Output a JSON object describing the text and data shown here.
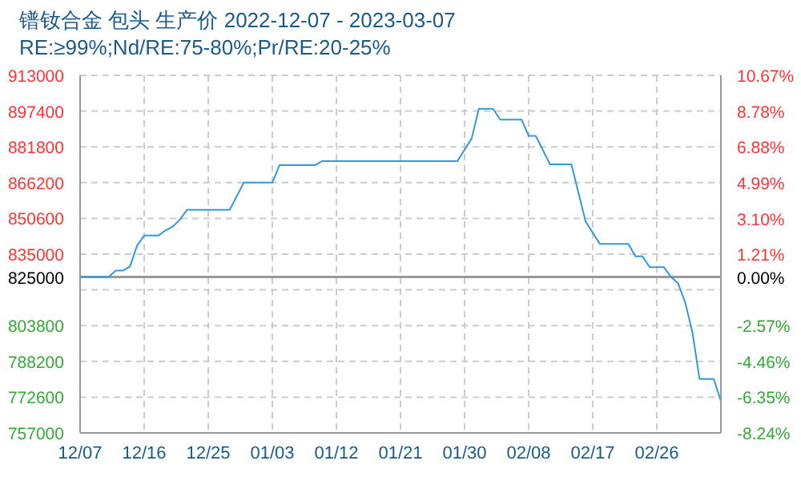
{
  "chart_data": {
    "type": "line",
    "title": "镨钕合金 包头 生产价 2022-12-07 - 2023-03-07",
    "subtitle": "RE:≥99%;Nd/RE:75-80%;Pr/RE:20-25%",
    "x": [
      "2022-12-07",
      "2022-12-11",
      "2022-12-12",
      "2022-12-13",
      "2022-12-14",
      "2022-12-15",
      "2022-12-16",
      "2022-12-18",
      "2022-12-19",
      "2022-12-20",
      "2022-12-21",
      "2022-12-22",
      "2022-12-28",
      "2022-12-30",
      "2023-01-03",
      "2023-01-04",
      "2023-01-09",
      "2023-01-10",
      "2023-01-29",
      "2023-01-31",
      "2023-02-01",
      "2023-02-03",
      "2023-02-04",
      "2023-02-07",
      "2023-02-08",
      "2023-02-09",
      "2023-02-11",
      "2023-02-14",
      "2023-02-16",
      "2023-02-18",
      "2023-02-22",
      "2023-02-23",
      "2023-02-24",
      "2023-02-25",
      "2023-02-27",
      "2023-02-28",
      "2023-03-01",
      "2023-03-02",
      "2023-03-03",
      "2023-03-04",
      "2023-03-06",
      "2023-03-07"
    ],
    "series": [
      {
        "color": "#3399dd",
        "values": [
          825000,
          825000,
          827800,
          827800,
          829600,
          838700,
          843100,
          843100,
          845400,
          847000,
          850000,
          854300,
          854300,
          866200,
          866200,
          873800,
          873800,
          875600,
          875600,
          885500,
          898400,
          898400,
          893700,
          893700,
          886600,
          886600,
          874200,
          874200,
          849200,
          839500,
          839500,
          834000,
          834000,
          829300,
          829300,
          825000,
          822200,
          813800,
          800900,
          780500,
          780500,
          770900
        ]
      }
    ],
    "xlim": [
      "2022-12-07",
      "2023-03-07"
    ],
    "xticks": [
      {
        "value": "2022-12-07",
        "label": "12/07"
      },
      {
        "value": "2022-12-16",
        "label": "12/16"
      },
      {
        "value": "2022-12-25",
        "label": "12/25"
      },
      {
        "value": "2023-01-03",
        "label": "01/03"
      },
      {
        "value": "2023-01-12",
        "label": "01/12"
      },
      {
        "value": "2023-01-21",
        "label": "01/21"
      },
      {
        "value": "2023-01-30",
        "label": "01/30"
      },
      {
        "value": "2023-02-08",
        "label": "02/08"
      },
      {
        "value": "2023-02-17",
        "label": "02/17"
      },
      {
        "value": "2023-02-26",
        "label": "02/26"
      }
    ],
    "ylim": [
      757000,
      913000
    ],
    "yticks": [
      757000,
      772600,
      788200,
      803800,
      {
        "value": 819400,
        "label": null
      },
      825000,
      835000,
      850600,
      866200,
      881800,
      897400,
      913000
    ],
    "y2lim": [
      -8.24,
      10.67
    ],
    "y2ticks": [
      {
        "value": -8.24,
        "label": "-8.24%"
      },
      {
        "value": -6.35,
        "label": "-6.35%"
      },
      {
        "value": -4.46,
        "label": "-4.46%"
      },
      {
        "value": -2.57,
        "label": "-2.57%"
      },
      {
        "value": 0,
        "label": "0.00%"
      },
      {
        "value": 1.21,
        "label": "1.21%"
      },
      {
        "value": 3.1,
        "label": "3.10%"
      },
      {
        "value": 4.99,
        "label": "4.99%"
      },
      {
        "value": 6.88,
        "label": "6.88%"
      },
      {
        "value": 8.78,
        "label": "8.78%"
      },
      {
        "value": 10.67,
        "label": "10.67%"
      }
    ],
    "ref_lines": [
      {
        "axis": "y",
        "value": 825000,
        "color": "#999999"
      }
    ],
    "grid": true,
    "legend": false,
    "marker": "none",
    "line_style": "solid"
  }
}
